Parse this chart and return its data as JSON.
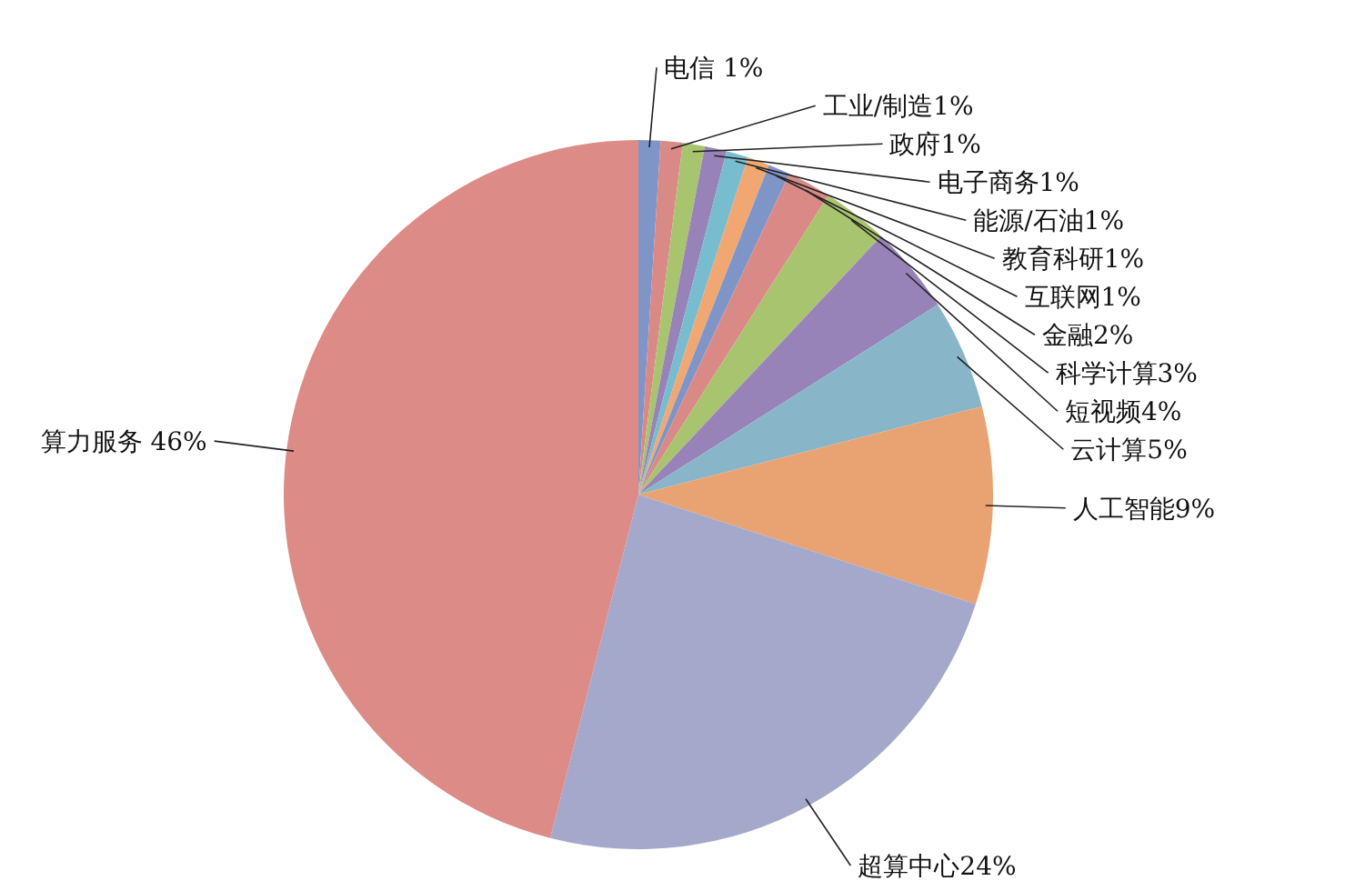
{
  "chart_data": {
    "type": "pie",
    "categories": [
      "电信 1%",
      "工业/制造1%",
      "政府1%",
      "电子商务1%",
      "能源/石油1%",
      "教育科研1%",
      "互联网1%",
      "金融2%",
      "科学计算3%",
      "短视频4%",
      "云计算5%",
      "人工智能9%",
      "超算中心24%",
      "算力服务 46%"
    ],
    "values": [
      1,
      1,
      1,
      1,
      1,
      1,
      1,
      2,
      3,
      4,
      5,
      9,
      24,
      46
    ],
    "colors": [
      "#7f95c8",
      "#d98a86",
      "#a9c46f",
      "#9883b8",
      "#78bcd0",
      "#f0a772",
      "#7f95c8",
      "#d98a86",
      "#a9c46f",
      "#9883b8",
      "#88b6c8",
      "#e9a272",
      "#a4a9cc",
      "#dc8b87"
    ]
  }
}
